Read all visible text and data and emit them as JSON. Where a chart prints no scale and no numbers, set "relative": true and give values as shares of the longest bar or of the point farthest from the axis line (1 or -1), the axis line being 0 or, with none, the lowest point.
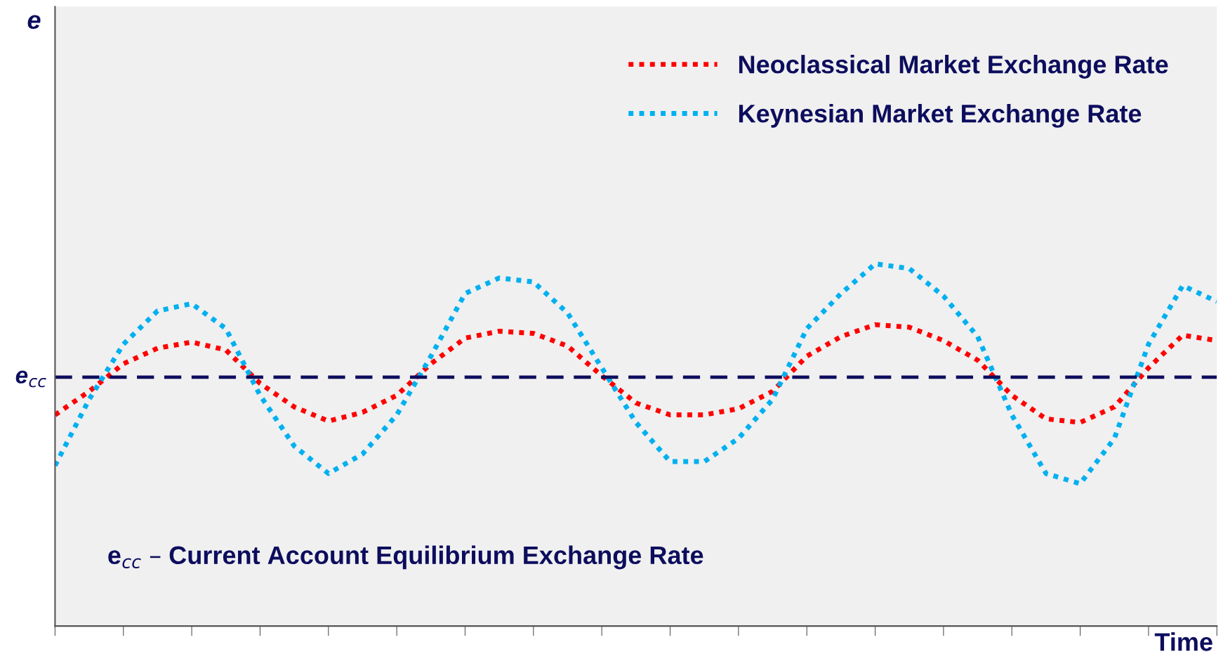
{
  "chart_data": {
    "type": "line",
    "relative": true,
    "xlabel": "Time",
    "categories": [
      null,
      null,
      null,
      null,
      null,
      null,
      null,
      null,
      null,
      null,
      null,
      null,
      null,
      null,
      null,
      null,
      null,
      null,
      null,
      null,
      null,
      null,
      null,
      null,
      null,
      null,
      null,
      null,
      null,
      null,
      null,
      null,
      null,
      null,
      null
    ],
    "series": [
      {
        "name": "Neoclassical Market Exchange Rate",
        "color": "#ff0000",
        "values": [
          0.583,
          0.648,
          0.724,
          0.767,
          0.784,
          0.762,
          0.67,
          0.605,
          0.566,
          0.59,
          0.637,
          0.724,
          0.795,
          0.814,
          0.808,
          0.773,
          0.691,
          0.616,
          0.583,
          0.583,
          0.6,
          0.648,
          0.745,
          0.799,
          0.832,
          0.825,
          0.788,
          0.734,
          0.637,
          0.572,
          0.562,
          0.605,
          0.713,
          0.803,
          0.788
        ]
      },
      {
        "name": "Keynesian Market Exchange Rate",
        "color": "#00b0f0",
        "values": [
          0.443,
          0.626,
          0.778,
          0.87,
          0.89,
          0.821,
          0.637,
          0.497,
          0.421,
          0.475,
          0.583,
          0.745,
          0.918,
          0.961,
          0.95,
          0.864,
          0.713,
          0.562,
          0.454,
          0.454,
          0.518,
          0.626,
          0.821,
          0.918,
          1.0,
          0.987,
          0.911,
          0.799,
          0.583,
          0.421,
          0.393,
          0.518,
          0.778,
          0.94,
          0.896
        ]
      }
    ],
    "ref_lines": [
      {
        "axis": "y",
        "value": 0.687,
        "label": "e$_{cc}$",
        "color": "#0d0d5e",
        "line_style": "dashed"
      }
    ],
    "annotations": [
      "e",
      "e$_{cc}$ – Current Account Equilibrium Exchange Rate"
    ],
    "line_style": "dotted",
    "marker": "none",
    "legend": "top right",
    "grid": false
  }
}
